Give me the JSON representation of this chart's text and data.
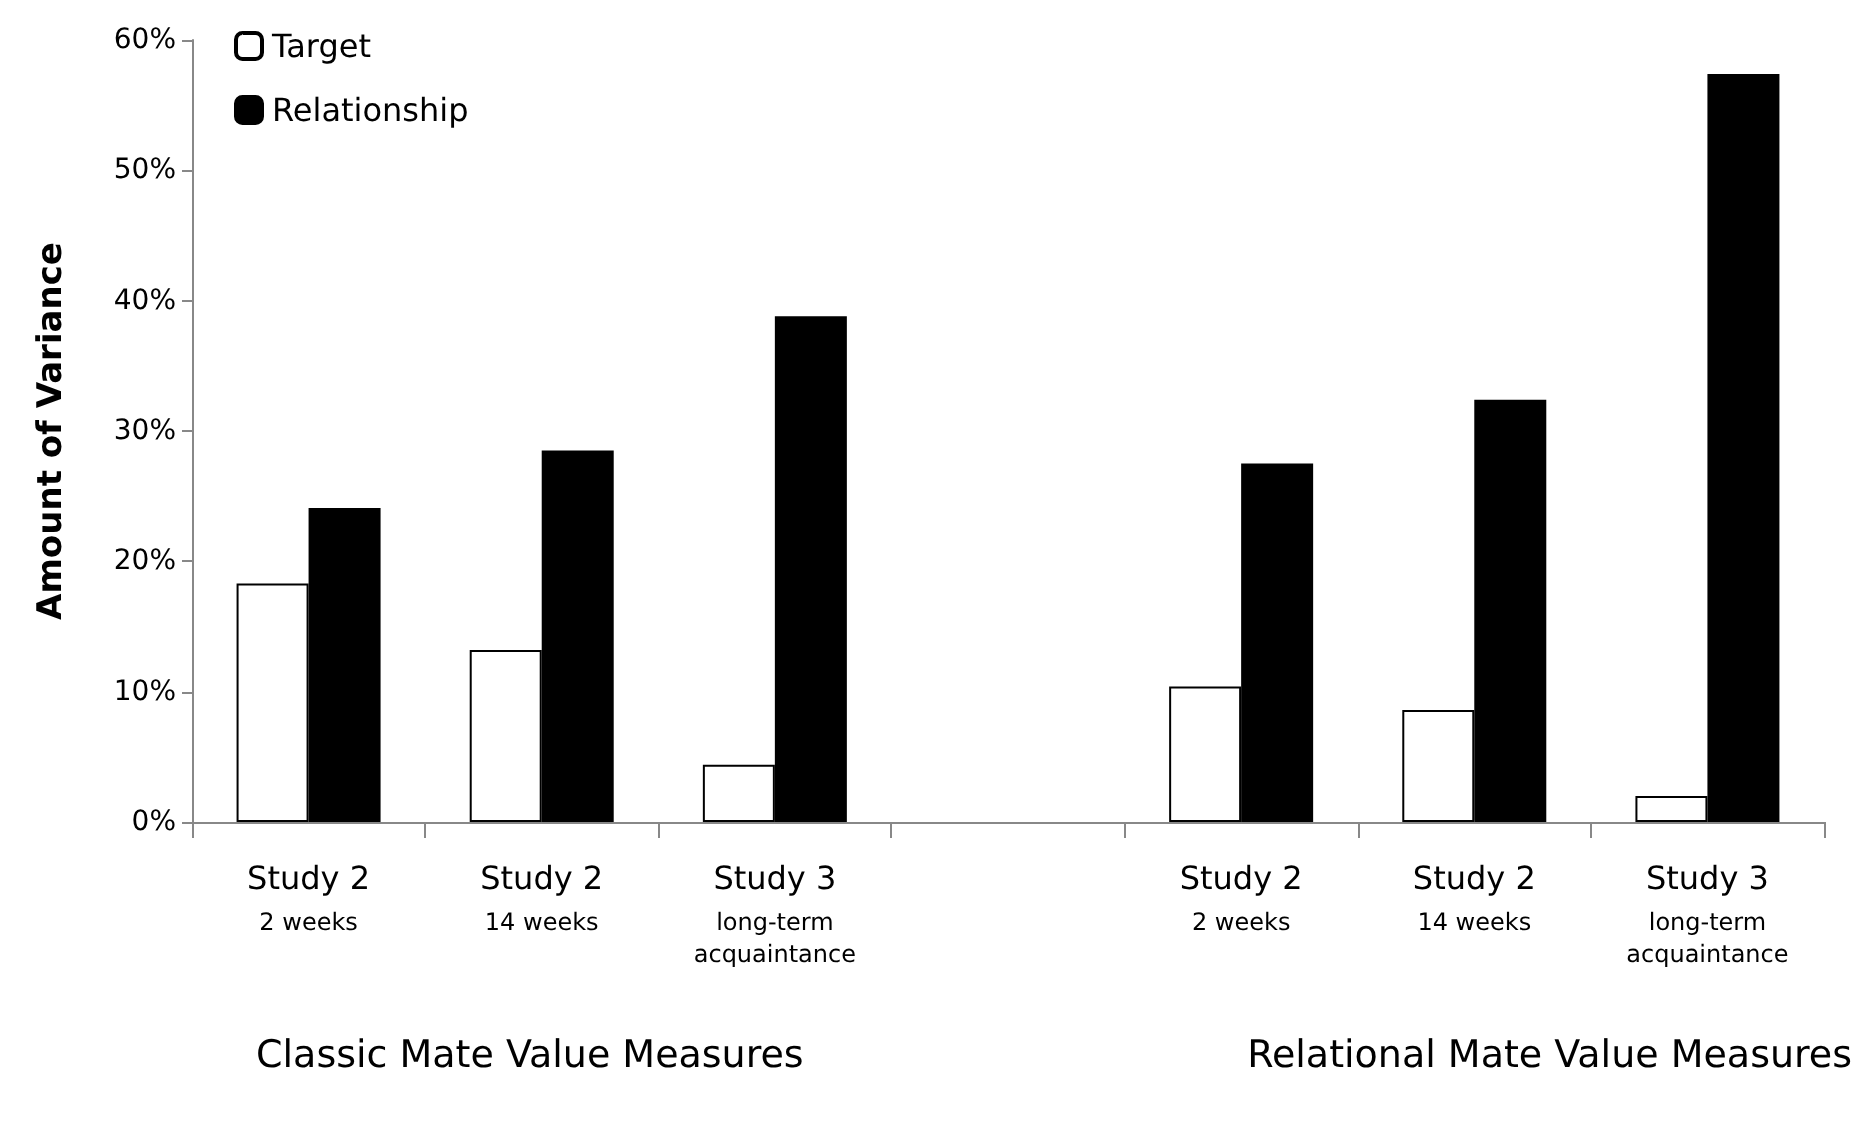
{
  "chart_data": {
    "type": "bar",
    "ylabel": "Amount of Variance",
    "categories": [
      "Study 2\n2 weeks",
      "Study 2\n14 weeks",
      "Study 3\nlong-term\nacquaintance",
      null,
      "Study 2\n2 weeks",
      "Study 2\n14 weeks",
      "Study 3\nlong-term\nacquaintance"
    ],
    "series": [
      {
        "name": "Target",
        "color": "#ffffff",
        "values": [
          18.3,
          13.2,
          4.4,
          null,
          10.4,
          8.6,
          2.0
        ]
      },
      {
        "name": "Relationship",
        "color": "#000000",
        "values": [
          24.1,
          28.5,
          38.8,
          null,
          27.5,
          32.4,
          57.4
        ]
      }
    ],
    "ylim": [
      0,
      60
    ],
    "yticks": [
      {
        "value": 0,
        "label": "0%"
      },
      {
        "value": 10,
        "label": "10%"
      },
      {
        "value": 20,
        "label": "20%"
      },
      {
        "value": 30,
        "label": "30%"
      },
      {
        "value": 40,
        "label": "40%"
      },
      {
        "value": 50,
        "label": "50%"
      },
      {
        "value": 60,
        "label": "60%"
      }
    ],
    "annotations": [
      "Classic Mate Value Measures",
      "Relational Mate Value Measures"
    ],
    "legend": "top left",
    "grid": false
  }
}
